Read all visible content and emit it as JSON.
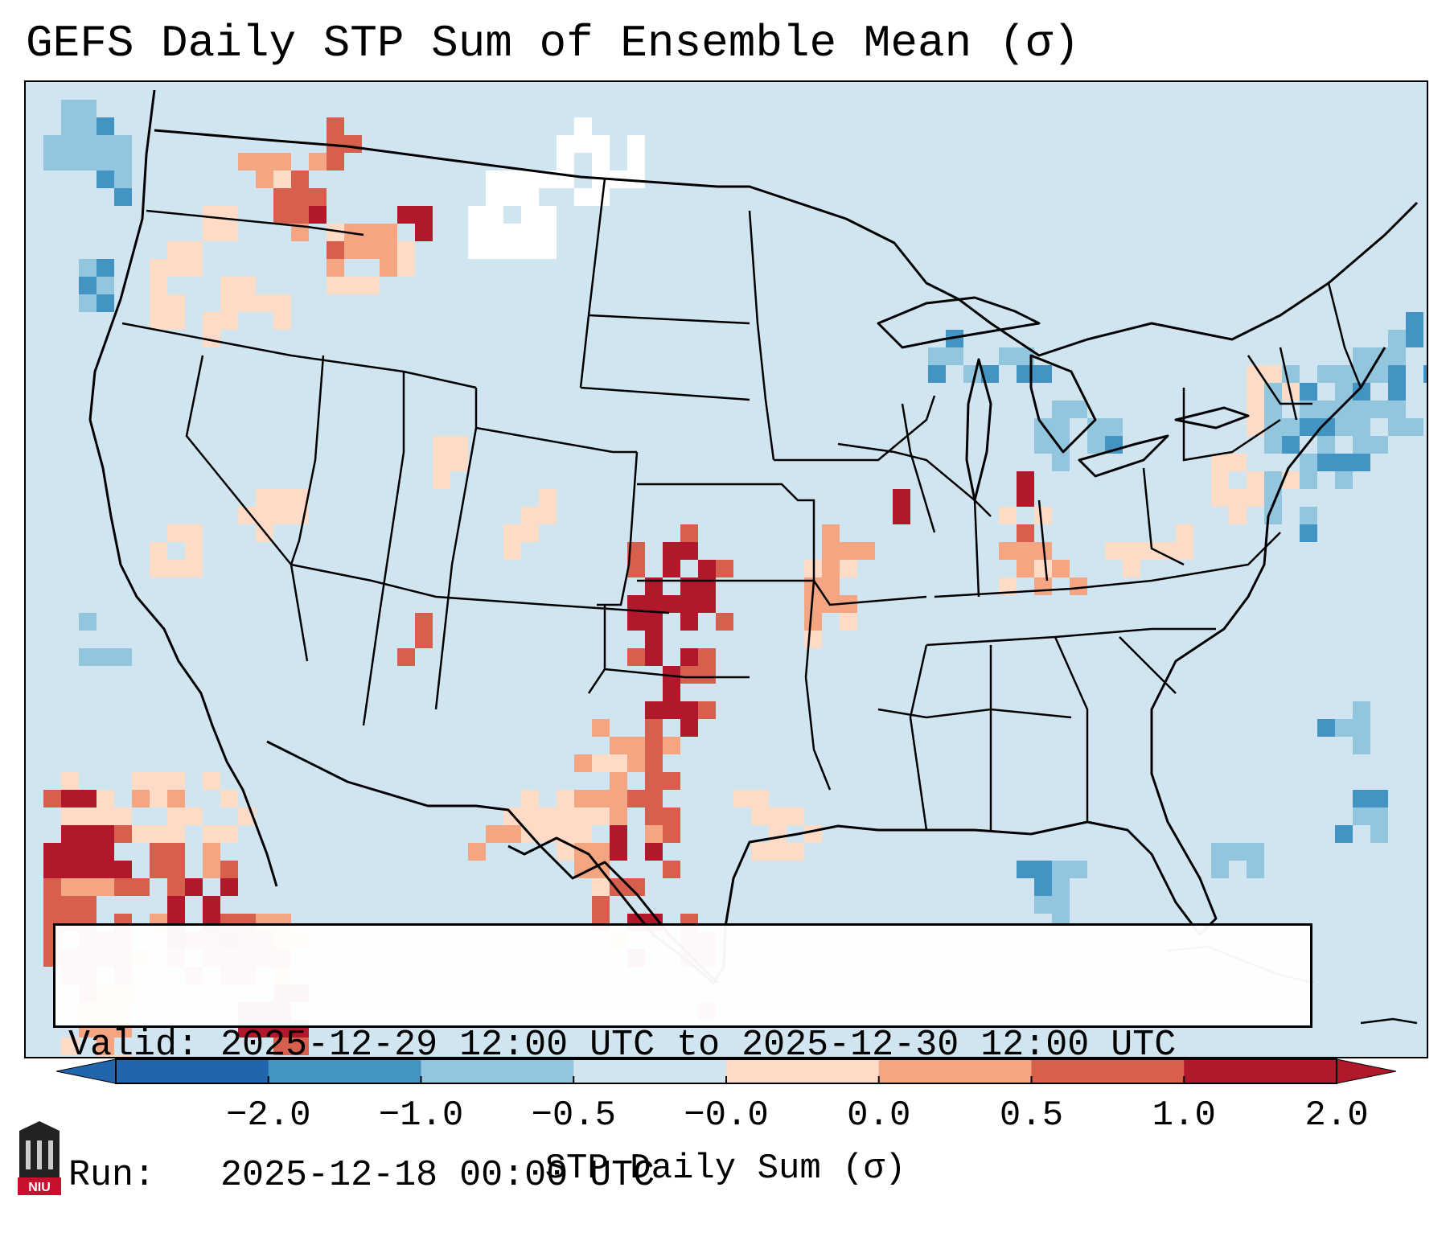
{
  "title": "GEFS Daily STP Sum of Ensemble Mean (σ)",
  "info": {
    "valid_label": "Valid:",
    "valid_value": "2025-12-29 12:00 UTC to 2025-12-30 12:00 UTC",
    "run_label": "Run:",
    "run_value": "2025-12-18 00:00 UTC"
  },
  "colorbar": {
    "title": "STP Daily Sum (σ)",
    "ticks": [
      "−2.0",
      "−1.0",
      "−0.5",
      "−0.0",
      "0.0",
      "0.5",
      "1.0",
      "2.0"
    ],
    "colors": [
      "#2166ac",
      "#4393c3",
      "#92c5de",
      "#d1e5f0",
      "#fddbc7",
      "#f4a582",
      "#d6604d",
      "#b2182b"
    ],
    "background": "#d1e5f0"
  },
  "logo": {
    "text": "NIU",
    "color": "#c8102e",
    "icon": "university-building-icon"
  },
  "map": {
    "region": "Contiguous United States",
    "strong_positive_areas": [
      "Kansas",
      "Oklahoma",
      "North Texas",
      "South Texas",
      "Washington",
      "Eastern Pacific (off Baja California)"
    ],
    "moderate_positive_areas": [
      "Missouri",
      "Arkansas",
      "Indiana",
      "Ohio",
      "Pennsylvania",
      "Oregon",
      "Nevada",
      "Utah"
    ],
    "negative_areas": [
      "Great Lakes",
      "Atlantic Ocean",
      "Gulf of Mexico",
      "Northern Plains"
    ]
  }
}
